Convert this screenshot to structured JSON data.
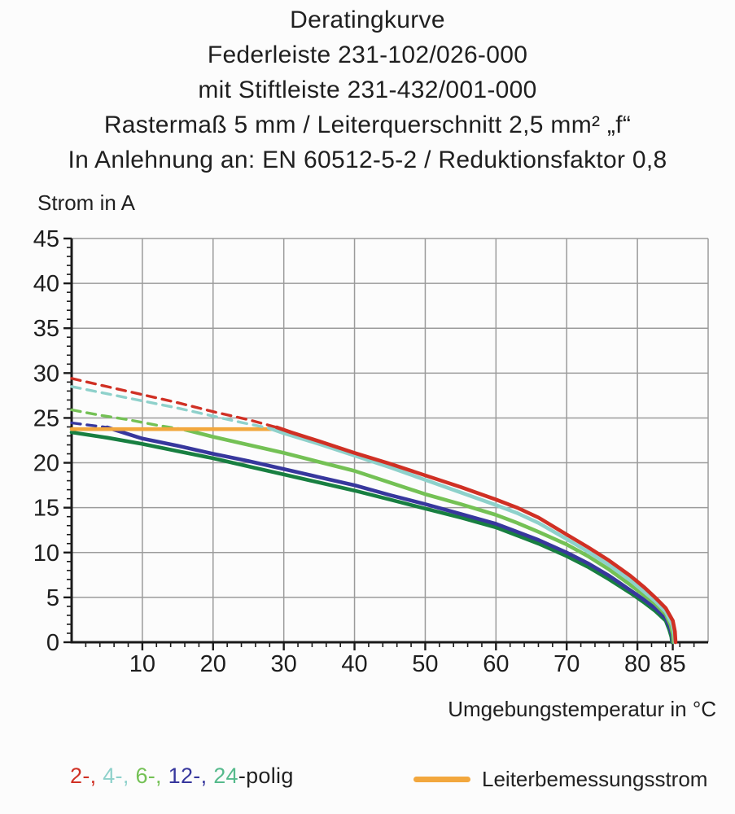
{
  "title": {
    "lines": [
      "Deratingkurve",
      "Federleiste 231-102/026-000",
      "mit Stiftleiste 231-432/001-000",
      "Rastermaß 5 mm / Leiterquerschnitt 2,5 mm² „f“",
      "In Anlehnung an: EN 60512-5-2 / Reduktionsfaktor 0,8"
    ]
  },
  "chart_data": {
    "type": "line",
    "ylabel": "Strom in A",
    "xlabel": "Umgebungstemperatur in °C",
    "xlim": [
      0,
      90
    ],
    "ylim": [
      0,
      45
    ],
    "x_major_ticks": [
      10,
      20,
      30,
      40,
      50,
      60,
      70,
      80,
      85
    ],
    "x_minor_step": 2,
    "y_major_ticks": [
      0,
      5,
      10,
      15,
      20,
      25,
      30,
      35,
      40,
      45
    ],
    "y_minor_step": 1,
    "grid": {
      "x_lines": [
        10,
        20,
        30,
        40,
        50,
        60,
        70,
        80,
        90
      ],
      "y_lines": [
        5,
        10,
        15,
        20,
        25,
        30,
        35,
        40,
        45
      ]
    },
    "style": {
      "axis_color": "#1a1a1a",
      "grid_color": "#9b9b9b"
    },
    "legend_position": "bottom",
    "series": [
      {
        "name": "24-polig",
        "color": "#187f41",
        "points": [
          [
            0,
            23.4
          ],
          [
            5,
            22.8
          ],
          [
            10,
            22.1
          ],
          [
            15,
            21.3
          ],
          [
            20,
            20.5
          ],
          [
            25,
            19.6
          ],
          [
            30,
            18.7
          ],
          [
            35,
            17.8
          ],
          [
            40,
            16.9
          ],
          [
            45,
            15.9
          ],
          [
            50,
            14.9
          ],
          [
            55,
            13.9
          ],
          [
            60,
            12.8
          ],
          [
            63,
            11.9
          ],
          [
            66,
            11.0
          ],
          [
            70,
            9.6
          ],
          [
            73,
            8.4
          ],
          [
            76,
            7.0
          ],
          [
            79,
            5.5
          ],
          [
            81,
            4.4
          ],
          [
            82.5,
            3.5
          ],
          [
            84,
            2.4
          ],
          [
            84.5,
            1.4
          ],
          [
            84.8,
            0.6
          ],
          [
            84.9,
            0
          ]
        ]
      },
      {
        "name": "12-polig",
        "color": "#37379d",
        "dashed_points": [
          [
            0,
            24.45
          ],
          [
            2.5,
            24.2
          ],
          [
            5,
            23.95
          ]
        ],
        "points": [
          [
            5,
            23.95
          ],
          [
            8,
            23.2
          ],
          [
            10,
            22.7
          ],
          [
            15,
            21.9
          ],
          [
            20,
            21.0
          ],
          [
            25,
            20.2
          ],
          [
            30,
            19.3
          ],
          [
            35,
            18.4
          ],
          [
            40,
            17.5
          ],
          [
            45,
            16.4
          ],
          [
            50,
            15.4
          ],
          [
            55,
            14.3
          ],
          [
            60,
            13.2
          ],
          [
            63,
            12.3
          ],
          [
            66,
            11.4
          ],
          [
            70,
            10.0
          ],
          [
            73,
            8.8
          ],
          [
            76,
            7.4
          ],
          [
            79,
            5.8
          ],
          [
            81,
            4.7
          ],
          [
            82.5,
            3.8
          ],
          [
            84,
            2.7
          ],
          [
            84.6,
            1.6
          ],
          [
            84.9,
            0.7
          ],
          [
            85,
            0
          ]
        ]
      },
      {
        "name": "6-polig",
        "color": "#74c155",
        "dashed_points": [
          [
            0,
            25.9
          ],
          [
            4,
            25.3
          ],
          [
            8,
            24.8
          ],
          [
            12,
            24.2
          ],
          [
            16,
            23.7
          ]
        ],
        "points": [
          [
            16,
            23.7
          ],
          [
            20,
            22.9
          ],
          [
            25,
            22.0
          ],
          [
            30,
            21.1
          ],
          [
            35,
            20.1
          ],
          [
            40,
            19.1
          ],
          [
            45,
            17.8
          ],
          [
            50,
            16.5
          ],
          [
            55,
            15.4
          ],
          [
            60,
            14.2
          ],
          [
            63,
            13.3
          ],
          [
            66,
            12.3
          ],
          [
            70,
            10.9
          ],
          [
            73,
            9.6
          ],
          [
            76,
            8.1
          ],
          [
            79,
            6.4
          ],
          [
            81,
            5.2
          ],
          [
            82.5,
            4.3
          ],
          [
            84,
            3.1
          ],
          [
            84.7,
            1.9
          ],
          [
            85,
            0.9
          ],
          [
            85.1,
            0
          ]
        ]
      },
      {
        "name": "Leiterbemessungsstrom",
        "color": "#f2a73d",
        "points": [
          [
            0,
            23.75
          ],
          [
            28.5,
            23.75
          ]
        ]
      },
      {
        "name": "4-polig",
        "color": "#8ed1cb",
        "dashed_points": [
          [
            0,
            28.5
          ],
          [
            5,
            27.7
          ],
          [
            10,
            26.9
          ],
          [
            15,
            26.1
          ],
          [
            20,
            25.2
          ],
          [
            24,
            24.5
          ],
          [
            28,
            23.85
          ]
        ],
        "points": [
          [
            28,
            23.85
          ],
          [
            30,
            23.3
          ],
          [
            35,
            22.1
          ],
          [
            40,
            20.8
          ],
          [
            45,
            19.5
          ],
          [
            50,
            18.1
          ],
          [
            55,
            16.7
          ],
          [
            60,
            15.3
          ],
          [
            63,
            14.4
          ],
          [
            66,
            13.3
          ],
          [
            70,
            11.5
          ],
          [
            73,
            10.1
          ],
          [
            76,
            8.6
          ],
          [
            79,
            6.9
          ],
          [
            81,
            5.6
          ],
          [
            82.5,
            4.6
          ],
          [
            84,
            3.4
          ],
          [
            84.9,
            2.0
          ],
          [
            85.2,
            1.0
          ],
          [
            85.3,
            0
          ]
        ]
      },
      {
        "name": "2-polig",
        "color": "#d03024",
        "dashed_points": [
          [
            0,
            29.4
          ],
          [
            5,
            28.5
          ],
          [
            10,
            27.6
          ],
          [
            15,
            26.7
          ],
          [
            20,
            25.7
          ],
          [
            25,
            24.8
          ],
          [
            29,
            23.95
          ]
        ],
        "points": [
          [
            29,
            23.95
          ],
          [
            31,
            23.4
          ],
          [
            35,
            22.4
          ],
          [
            40,
            21.1
          ],
          [
            45,
            19.9
          ],
          [
            50,
            18.6
          ],
          [
            55,
            17.3
          ],
          [
            60,
            15.9
          ],
          [
            63,
            15.0
          ],
          [
            66,
            13.9
          ],
          [
            70,
            12.0
          ],
          [
            73,
            10.6
          ],
          [
            76,
            9.1
          ],
          [
            79,
            7.4
          ],
          [
            81,
            6.1
          ],
          [
            82.5,
            5.0
          ],
          [
            84,
            3.8
          ],
          [
            85,
            2.4
          ],
          [
            85.3,
            1.2
          ],
          [
            85.4,
            0
          ]
        ]
      }
    ]
  },
  "legend_left": {
    "parts": [
      {
        "text": "2-, ",
        "color": "#d03024"
      },
      {
        "text": "4-, ",
        "color": "#8ed1cb"
      },
      {
        "text": "6-, ",
        "color": "#74c155"
      },
      {
        "text": "12-, ",
        "color": "#37379d"
      },
      {
        "text": "24",
        "color": "#56ba8c"
      },
      {
        "text": "-polig",
        "color": "#222222"
      }
    ]
  },
  "legend_right": {
    "label": "Leiterbemessungsstrom",
    "swatch_color": "#f2a73d"
  }
}
